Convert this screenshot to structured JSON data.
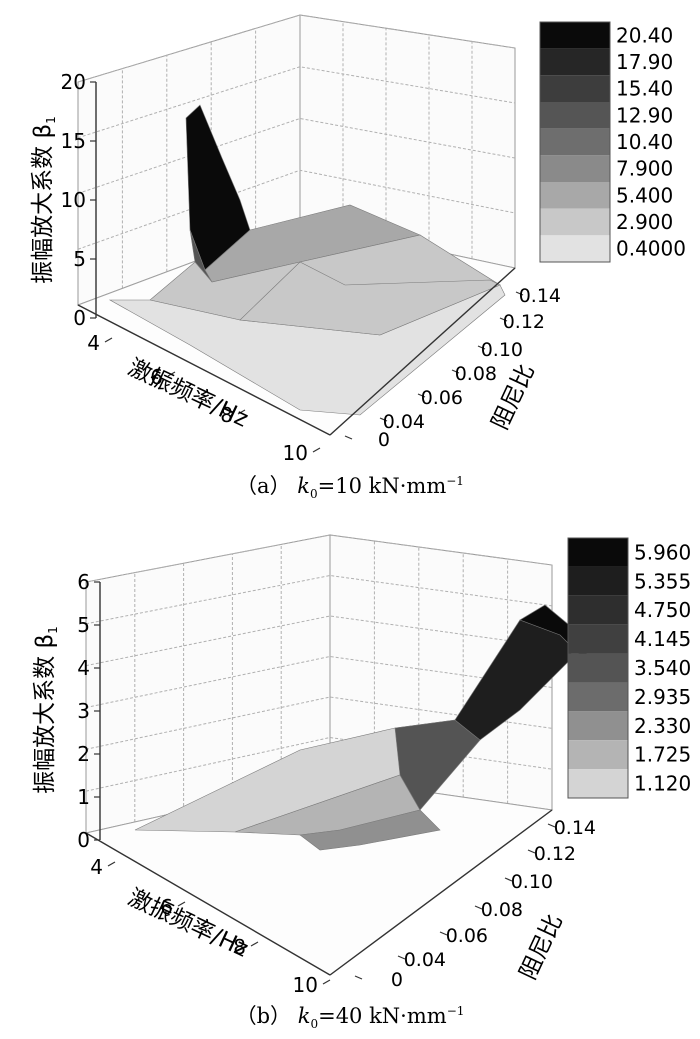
{
  "chart_data": [
    {
      "type": "surface3d",
      "panel": "a",
      "caption": {
        "prefix": "（a）",
        "k": "k",
        "sub": "0",
        "value": "=10 kN·mm",
        "sup": "−1"
      },
      "zlabel": "振幅放大系数 β",
      "zlabel_sub": "1",
      "xlabel": "激振频率/Hz",
      "ylabel": "阻尼比",
      "zticks": [
        "0",
        "5",
        "10",
        "15",
        "20"
      ],
      "xticks": [
        "4",
        "6",
        "8",
        "10"
      ],
      "yticks": [
        "0",
        "0.04",
        "0.06",
        "0.08",
        "0.10",
        "0.12",
        "0.14"
      ],
      "zlim": [
        0,
        20
      ],
      "xlim": [
        3,
        10
      ],
      "ylim": [
        0,
        0.14
      ],
      "colorbar": [
        "20.40",
        "17.90",
        "15.40",
        "12.90",
        "10.40",
        "7.900",
        "5.400",
        "2.900",
        "0.4000"
      ],
      "colors": [
        "#0a0a0a",
        "#262626",
        "#3d3d3d",
        "#555555",
        "#6e6e6e",
        "#8a8a8a",
        "#a8a8a8",
        "#c8c8c8",
        "#e2e2e2"
      ],
      "peak": {
        "frequency": 4.5,
        "beta": 18
      }
    },
    {
      "type": "surface3d",
      "panel": "b",
      "caption": {
        "prefix": "（b）",
        "k": "k",
        "sub": "0",
        "value": "=40 kN·mm",
        "sup": "−1"
      },
      "zlabel": "振幅放大系数 β",
      "zlabel_sub": "1",
      "xlabel": "激振频率/Hz",
      "ylabel": "阻尼比",
      "zticks": [
        "0",
        "1",
        "2",
        "3",
        "4",
        "5",
        "6"
      ],
      "xticks": [
        "4",
        "6",
        "8",
        "10"
      ],
      "yticks": [
        "0",
        "0.04",
        "0.06",
        "0.08",
        "0.10",
        "0.12",
        "0.14"
      ],
      "zlim": [
        0,
        6
      ],
      "xlim": [
        3,
        10
      ],
      "ylim": [
        0,
        0.14
      ],
      "colorbar": [
        "5.960",
        "5.355",
        "4.750",
        "4.145",
        "3.540",
        "2.935",
        "2.330",
        "1.725",
        "1.120"
      ],
      "colors": [
        "#0a0a0a",
        "#1e1e1e",
        "#2e2e2e",
        "#404040",
        "#545454",
        "#6c6c6c",
        "#909090",
        "#b4b4b4",
        "#d4d4d4"
      ],
      "peak": {
        "frequency": 10,
        "beta": 5.5
      }
    }
  ]
}
